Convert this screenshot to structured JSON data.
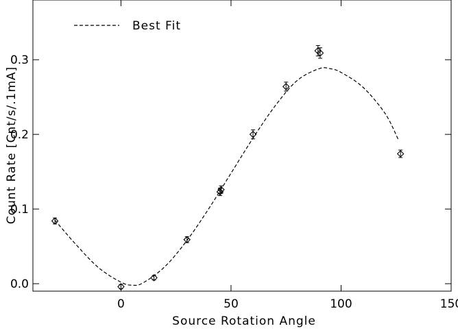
{
  "chart_data": {
    "type": "scatter",
    "xlabel": "Source Rotation Angle",
    "ylabel": "Count Rate [Cnt/s/.1mA]",
    "xlim": [
      -40,
      150
    ],
    "ylim": [
      -0.01,
      0.38
    ],
    "xticks": [
      0,
      50,
      100,
      150
    ],
    "xtick_labels": [
      "0",
      "50",
      "100",
      "150"
    ],
    "yticks": [
      0.0,
      0.1,
      0.2,
      0.3
    ],
    "ytick_labels": [
      "0.0",
      "0.1",
      "0.2",
      "0.3"
    ],
    "grid": false,
    "legend_position": "top-left",
    "colors": {
      "foreground": "#000000",
      "background": "#ffffff"
    },
    "series": [
      {
        "type": "scatter",
        "marker": "diamond",
        "error_bars": true,
        "points": [
          {
            "x": -30,
            "y": 0.084,
            "err": 0.004
          },
          {
            "x": 0,
            "y": -0.004,
            "err": 0.003
          },
          {
            "x": 15,
            "y": 0.008,
            "err": 0.003
          },
          {
            "x": 30,
            "y": 0.059,
            "err": 0.004
          },
          {
            "x": 45,
            "y": 0.123,
            "err": 0.005
          },
          {
            "x": 45.5,
            "y": 0.126,
            "err": 0.005
          },
          {
            "x": 60,
            "y": 0.2,
            "err": 0.006
          },
          {
            "x": 75,
            "y": 0.264,
            "err": 0.006
          },
          {
            "x": 89.5,
            "y": 0.312,
            "err": 0.007
          },
          {
            "x": 90.5,
            "y": 0.309,
            "err": 0.007
          },
          {
            "x": 127,
            "y": 0.174,
            "err": 0.005
          }
        ]
      },
      {
        "name": "Best Fit",
        "type": "line",
        "style": "dashed",
        "points": [
          {
            "x": -30,
            "y": 0.085
          },
          {
            "x": -20,
            "y": 0.051
          },
          {
            "x": -10,
            "y": 0.021
          },
          {
            "x": 0,
            "y": 0.002
          },
          {
            "x": 5,
            "y": -0.002
          },
          {
            "x": 10,
            "y": 0.001
          },
          {
            "x": 20,
            "y": 0.023
          },
          {
            "x": 30,
            "y": 0.058
          },
          {
            "x": 40,
            "y": 0.101
          },
          {
            "x": 50,
            "y": 0.148
          },
          {
            "x": 60,
            "y": 0.195
          },
          {
            "x": 70,
            "y": 0.238
          },
          {
            "x": 80,
            "y": 0.272
          },
          {
            "x": 90,
            "y": 0.288
          },
          {
            "x": 95,
            "y": 0.288
          },
          {
            "x": 100,
            "y": 0.283
          },
          {
            "x": 110,
            "y": 0.263
          },
          {
            "x": 120,
            "y": 0.228
          },
          {
            "x": 126,
            "y": 0.193
          }
        ]
      }
    ]
  }
}
